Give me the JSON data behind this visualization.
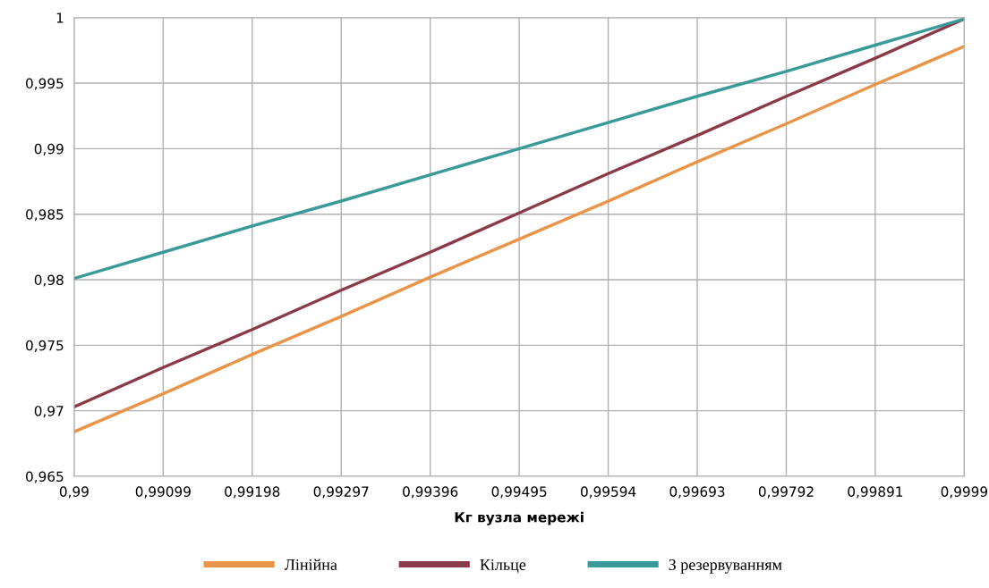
{
  "chart_data": {
    "type": "line",
    "xlabel": "Кг вузла мережі",
    "x": [
      0.99,
      0.99099,
      0.99198,
      0.99297,
      0.99396,
      0.99495,
      0.99594,
      0.99693,
      0.99792,
      0.99891,
      0.9999
    ],
    "series": [
      {
        "name": "Лінійна",
        "color": "#e8954a",
        "values": [
          0.9684,
          0.9713,
          0.9743,
          0.9772,
          0.9802,
          0.9831,
          0.986,
          0.989,
          0.9919,
          0.9949,
          0.9978
        ]
      },
      {
        "name": "Кільце",
        "color": "#8b3a4a",
        "values": [
          0.9703,
          0.9733,
          0.9762,
          0.9792,
          0.9821,
          0.9851,
          0.9881,
          0.991,
          0.994,
          0.9969,
          0.9999
        ]
      },
      {
        "name": "З резервуванням",
        "color": "#3a9a9a",
        "values": [
          0.9801,
          0.9821,
          0.9841,
          0.986,
          0.988,
          0.99,
          0.992,
          0.994,
          0.9959,
          0.9979,
          0.9999
        ]
      }
    ],
    "xlim": [
      0.99,
      0.9999
    ],
    "xticks": [
      {
        "value": 0.99,
        "label": "0,99"
      },
      {
        "value": 0.99099,
        "label": "0,99099"
      },
      {
        "value": 0.99198,
        "label": "0,99198"
      },
      {
        "value": 0.99297,
        "label": "0,99297"
      },
      {
        "value": 0.99396,
        "label": "0,99396"
      },
      {
        "value": 0.99495,
        "label": "0,99495"
      },
      {
        "value": 0.99594,
        "label": "0,99594"
      },
      {
        "value": 0.99693,
        "label": "0,99693"
      },
      {
        "value": 0.99792,
        "label": "0,99792"
      },
      {
        "value": 0.99891,
        "label": "0,99891"
      },
      {
        "value": 0.9999,
        "label": "0,9999"
      }
    ],
    "ylim": [
      0.965,
      1
    ],
    "yticks": [
      {
        "value": 0.965,
        "label": "0,965"
      },
      {
        "value": 0.97,
        "label": "0,97"
      },
      {
        "value": 0.975,
        "label": "0,975"
      },
      {
        "value": 0.98,
        "label": "0,98"
      },
      {
        "value": 0.985,
        "label": "0,985"
      },
      {
        "value": 0.99,
        "label": "0,99"
      },
      {
        "value": 0.995,
        "label": "0,995"
      },
      {
        "value": 1,
        "label": "1"
      }
    ],
    "grid": true,
    "legend": "bottom",
    "marker": "none",
    "line_style": "solid"
  }
}
